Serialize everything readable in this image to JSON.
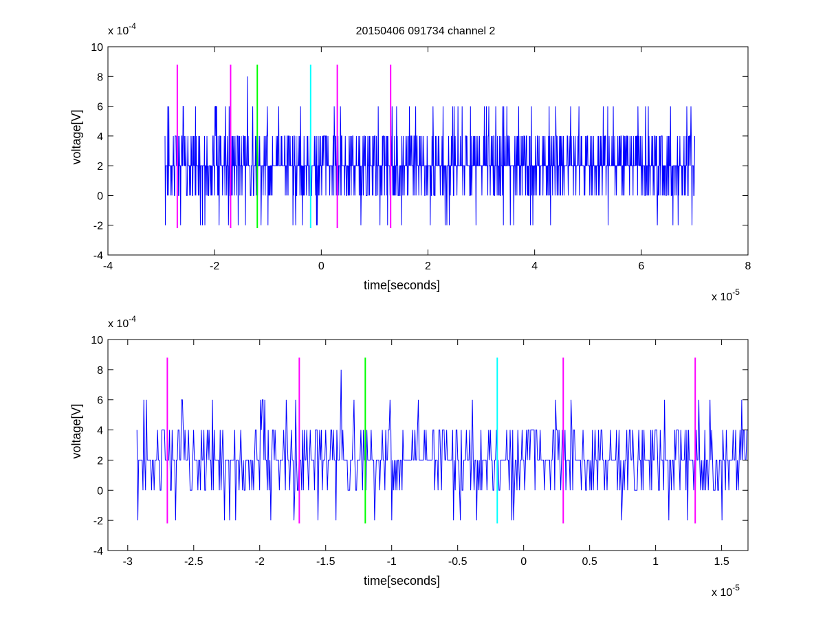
{
  "figure_title": "20150406 091734 channel 2",
  "chart_data": [
    {
      "type": "line",
      "title": "20150406 091734 channel 2",
      "xlabel": "time[seconds]",
      "ylabel": "voltage[V]",
      "x_multiplier": "x 10",
      "x_multiplier_exp": "-5",
      "y_multiplier": "x 10",
      "y_multiplier_exp": "-4",
      "xlim": [
        -4,
        8
      ],
      "ylim": [
        -4,
        10
      ],
      "xticks": [
        -4,
        -2,
        0,
        2,
        4,
        6,
        8
      ],
      "xtick_labels": [
        "-4",
        "-2",
        "0",
        "2",
        "4",
        "6",
        "8"
      ],
      "yticks": [
        -4,
        -2,
        0,
        2,
        4,
        6,
        8,
        10
      ],
      "ytick_labels": [
        "-4",
        "-2",
        "0",
        "2",
        "4",
        "6",
        "8",
        "10"
      ],
      "grid": false,
      "trace": {
        "color": "#0000ff",
        "x_start": -2.93,
        "x_end": 7.0,
        "baseline": 2,
        "levels": [
          -2,
          0,
          2,
          4,
          6,
          8
        ]
      },
      "markers": [
        {
          "x": -2.7,
          "color": "#ff00ff",
          "y_range": [
            -2.2,
            8.8
          ]
        },
        {
          "x": -1.7,
          "color": "#ff00ff",
          "y_range": [
            -2.2,
            8.8
          ]
        },
        {
          "x": -1.2,
          "color": "#00ff00",
          "y_range": [
            -2.2,
            8.8
          ]
        },
        {
          "x": -0.2,
          "color": "#00ffff",
          "y_range": [
            -2.2,
            8.8
          ]
        },
        {
          "x": 0.3,
          "color": "#ff00ff",
          "y_range": [
            -2.2,
            8.8
          ]
        },
        {
          "x": 1.3,
          "color": "#ff00ff",
          "y_range": [
            -2.2,
            8.8
          ]
        }
      ]
    },
    {
      "type": "line",
      "title": "",
      "xlabel": "time[seconds]",
      "ylabel": "voltage[V]",
      "x_multiplier": "x 10",
      "x_multiplier_exp": "-5",
      "y_multiplier": "x 10",
      "y_multiplier_exp": "-4",
      "xlim": [
        -3.15,
        1.7
      ],
      "ylim": [
        -4,
        10
      ],
      "xticks": [
        -3,
        -2.5,
        -2,
        -1.5,
        -1,
        -0.5,
        0,
        0.5,
        1,
        1.5
      ],
      "xtick_labels": [
        "-3",
        "-2.5",
        "-2",
        "-1.5",
        "-1",
        "-0.5",
        "0",
        "0.5",
        "1",
        "1.5"
      ],
      "yticks": [
        -4,
        -2,
        0,
        2,
        4,
        6,
        8,
        10
      ],
      "ytick_labels": [
        "-4",
        "-2",
        "0",
        "2",
        "4",
        "6",
        "8",
        "10"
      ],
      "grid": false,
      "trace": {
        "color": "#0000ff",
        "x_start": -2.93,
        "x_end": 1.7,
        "baseline": 2,
        "levels": [
          -2,
          0,
          2,
          4,
          6,
          8
        ]
      },
      "markers": [
        {
          "x": -2.7,
          "color": "#ff00ff",
          "y_range": [
            -2.2,
            8.8
          ]
        },
        {
          "x": -1.7,
          "color": "#ff00ff",
          "y_range": [
            -2.2,
            8.8
          ]
        },
        {
          "x": -1.2,
          "color": "#00ff00",
          "y_range": [
            -2.2,
            8.8
          ]
        },
        {
          "x": -0.2,
          "color": "#00ffff",
          "y_range": [
            -2.2,
            8.8
          ]
        },
        {
          "x": 0.3,
          "color": "#ff00ff",
          "y_range": [
            -2.2,
            8.8
          ]
        },
        {
          "x": 1.3,
          "color": "#ff00ff",
          "y_range": [
            -2.2,
            8.8
          ]
        }
      ]
    }
  ]
}
